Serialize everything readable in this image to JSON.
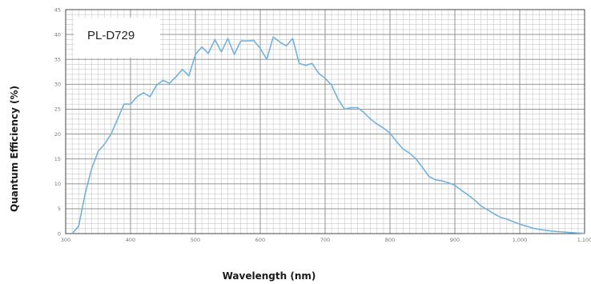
{
  "chart_data": {
    "type": "line",
    "title": "",
    "annotation": "PL-D729",
    "xlabel": "Wavelength (nm)",
    "ylabel": "Quantum Efficiency (%)",
    "xlim": [
      300,
      1100
    ],
    "ylim": [
      0,
      45
    ],
    "x_ticks": [
      300,
      400,
      500,
      600,
      700,
      800,
      900,
      1000,
      1100
    ],
    "x_tick_labels": [
      "300",
      "400",
      "500",
      "600",
      "700",
      "800",
      "900",
      "1,000",
      "1,100"
    ],
    "y_ticks": [
      0,
      5,
      10,
      15,
      20,
      25,
      30,
      35,
      40,
      45
    ],
    "y_tick_labels": [
      "0",
      "5",
      "10",
      "15",
      "20",
      "25",
      "30",
      "35",
      "40",
      "45"
    ],
    "grid": true,
    "line_color": "#72b2dd",
    "series": [
      {
        "x": [
          310,
          320,
          330,
          340,
          350,
          360,
          370,
          380,
          390,
          400,
          410,
          420,
          430,
          440,
          450,
          460,
          470,
          480,
          490,
          500,
          510,
          520,
          530,
          540,
          550,
          560,
          570,
          580,
          590,
          600,
          610,
          620,
          630,
          640,
          650,
          660,
          670,
          680,
          690,
          700,
          710,
          720,
          730,
          740,
          750,
          760,
          770,
          780,
          790,
          800,
          810,
          820,
          830,
          840,
          850,
          860,
          870,
          880,
          890,
          900,
          910,
          920,
          930,
          940,
          950,
          960,
          970,
          980,
          990,
          1000,
          1010,
          1020,
          1030,
          1040,
          1050,
          1060,
          1070,
          1080,
          1090,
          1100
        ],
        "values": [
          0,
          1.5,
          8,
          13,
          16.5,
          18,
          20,
          23,
          26,
          26,
          27.5,
          28.3,
          27.5,
          29.8,
          30.8,
          30.2,
          31.5,
          33,
          31.7,
          36,
          37.5,
          36.2,
          39,
          36.5,
          39.2,
          36,
          38.7,
          38.7,
          38.8,
          37.2,
          35,
          39.5,
          38.5,
          37.7,
          39.2,
          34.2,
          33.8,
          34.2,
          32.2,
          31.2,
          29.8,
          27,
          25,
          25.3,
          25.3,
          24.3,
          23,
          22,
          21.2,
          20.2,
          18.5,
          17,
          16.2,
          15,
          13.3,
          11.5,
          10.8,
          10.6,
          10.2,
          9.7,
          8.7,
          7.8,
          6.8,
          5.6,
          4.8,
          4,
          3.3,
          2.9,
          2.4,
          1.9,
          1.5,
          1.1,
          0.85,
          0.65,
          0.5,
          0.4,
          0.3,
          0.2,
          0.12,
          0.05
        ]
      }
    ]
  }
}
